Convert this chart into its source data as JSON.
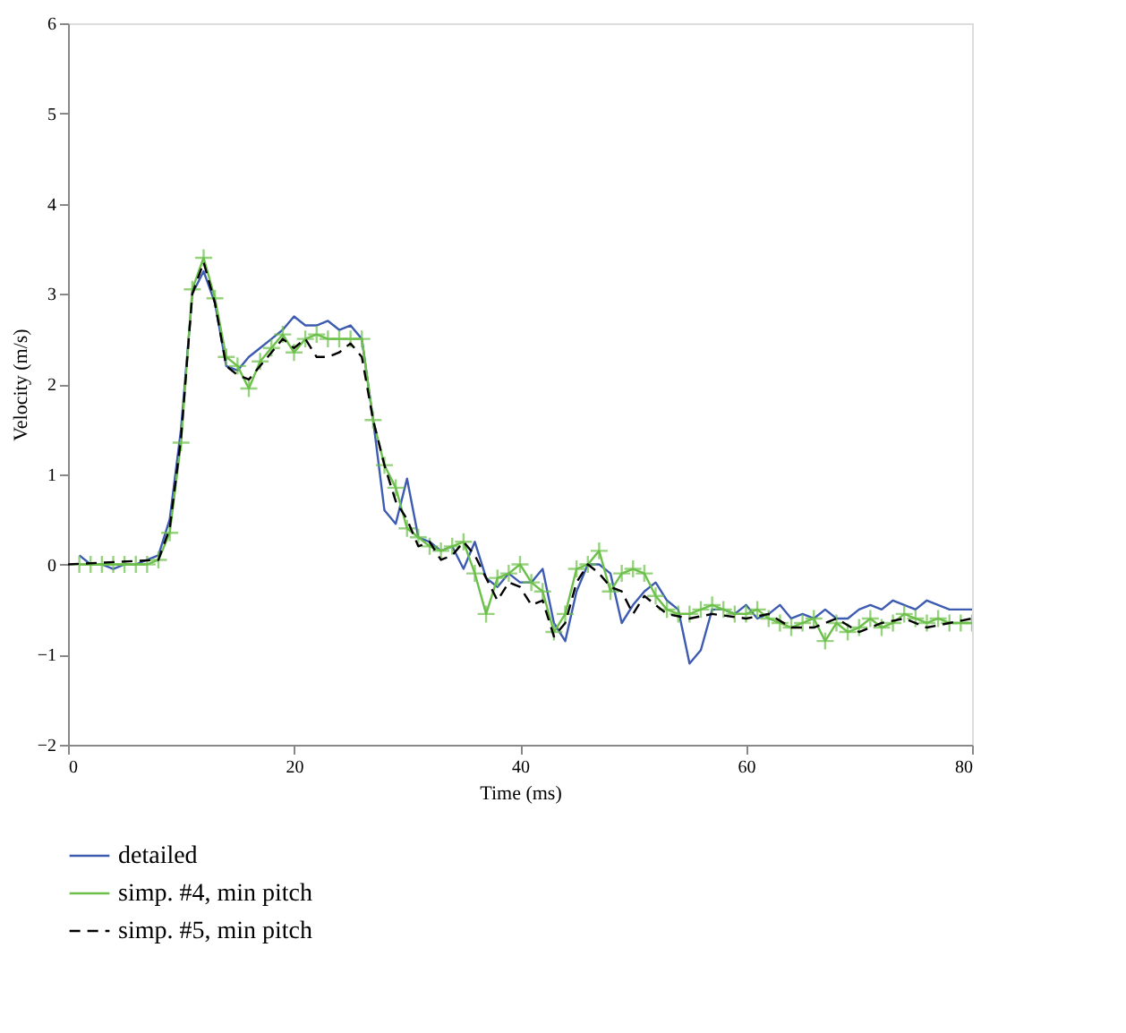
{
  "chart_data": {
    "type": "line",
    "xlabel": "Time (ms)",
    "ylabel": "Velocity (m/s)",
    "xlim": [
      0,
      80
    ],
    "ylim": [
      -2,
      6
    ],
    "xticks": [
      0,
      20,
      40,
      60,
      80
    ],
    "yticks": [
      -2,
      -1,
      0,
      1,
      2,
      3,
      4,
      5,
      6
    ],
    "grid": false,
    "legend": "bottom",
    "series": [
      {
        "name": "detailed",
        "color": "#3d5bb0",
        "line_style": "solid",
        "marker": "none",
        "x": [
          1,
          2,
          3,
          4,
          5,
          6,
          7,
          8,
          9,
          10,
          11,
          12,
          13,
          14,
          15,
          16,
          17,
          18,
          19,
          20,
          21,
          22,
          23,
          24,
          25,
          26,
          27,
          28,
          29,
          30,
          31,
          32,
          33,
          34,
          35,
          36,
          37,
          38,
          39,
          40,
          41,
          42,
          43,
          44,
          45,
          46,
          47,
          48,
          49,
          50,
          51,
          52,
          53,
          54,
          55,
          56,
          57,
          58,
          59,
          60,
          61,
          62,
          63,
          64,
          65,
          66,
          67,
          68,
          69,
          70,
          71,
          72,
          73,
          74,
          75,
          76,
          77,
          78,
          79,
          80
        ],
        "values": [
          0.1,
          0.0,
          0.0,
          -0.05,
          0.0,
          0.0,
          0.05,
          0.1,
          0.5,
          1.5,
          3.0,
          3.25,
          2.9,
          2.2,
          2.15,
          2.3,
          2.4,
          2.5,
          2.6,
          2.75,
          2.65,
          2.65,
          2.7,
          2.6,
          2.65,
          2.5,
          1.6,
          0.6,
          0.45,
          0.95,
          0.3,
          0.25,
          0.15,
          0.2,
          -0.05,
          0.25,
          -0.15,
          -0.25,
          -0.1,
          -0.2,
          -0.2,
          -0.05,
          -0.65,
          -0.85,
          -0.3,
          0.0,
          0.0,
          -0.1,
          -0.65,
          -0.45,
          -0.3,
          -0.2,
          -0.4,
          -0.5,
          -1.1,
          -0.95,
          -0.5,
          -0.5,
          -0.55,
          -0.45,
          -0.6,
          -0.55,
          -0.45,
          -0.6,
          -0.55,
          -0.6,
          -0.5,
          -0.6,
          -0.6,
          -0.5,
          -0.45,
          -0.5,
          -0.4,
          -0.45,
          -0.5,
          -0.4,
          -0.45,
          -0.5,
          -0.5,
          -0.5
        ]
      },
      {
        "name": "simp. #4, min pitch",
        "color": "#6cc04a",
        "line_style": "solid",
        "marker": "cross",
        "x": [
          1,
          2,
          3,
          4,
          5,
          6,
          7,
          8,
          9,
          10,
          11,
          12,
          13,
          14,
          15,
          16,
          17,
          18,
          19,
          20,
          21,
          22,
          23,
          24,
          25,
          26,
          27,
          28,
          29,
          30,
          31,
          32,
          33,
          34,
          35,
          36,
          37,
          38,
          39,
          40,
          41,
          42,
          43,
          44,
          45,
          46,
          47,
          48,
          49,
          50,
          51,
          52,
          53,
          54,
          55,
          56,
          57,
          58,
          59,
          60,
          61,
          62,
          63,
          64,
          65,
          66,
          67,
          68,
          69,
          70,
          71,
          72,
          73,
          74,
          75,
          76,
          77,
          78,
          79,
          80
        ],
        "values": [
          0.0,
          0.0,
          0.0,
          0.0,
          0.0,
          0.0,
          0.0,
          0.05,
          0.35,
          1.35,
          3.05,
          3.4,
          2.95,
          2.3,
          2.2,
          1.95,
          2.25,
          2.4,
          2.55,
          2.35,
          2.5,
          2.55,
          2.5,
          2.5,
          2.5,
          2.5,
          1.6,
          1.1,
          0.85,
          0.4,
          0.3,
          0.2,
          0.15,
          0.2,
          0.25,
          -0.1,
          -0.55,
          -0.15,
          -0.1,
          0.0,
          -0.2,
          -0.3,
          -0.75,
          -0.55,
          -0.05,
          0.0,
          0.15,
          -0.3,
          -0.1,
          -0.05,
          -0.1,
          -0.35,
          -0.5,
          -0.55,
          -0.55,
          -0.5,
          -0.45,
          -0.5,
          -0.55,
          -0.55,
          -0.5,
          -0.6,
          -0.65,
          -0.7,
          -0.65,
          -0.6,
          -0.85,
          -0.65,
          -0.75,
          -0.7,
          -0.6,
          -0.7,
          -0.65,
          -0.55,
          -0.6,
          -0.65,
          -0.6,
          -0.65,
          -0.65,
          -0.65
        ]
      },
      {
        "name": "simp. #5, min pitch",
        "color": "#000000",
        "line_style": "dashed",
        "marker": "none",
        "x": [
          0,
          8,
          9,
          10,
          11,
          12,
          13,
          14,
          15,
          16,
          17,
          18,
          19,
          20,
          21,
          22,
          23,
          24,
          25,
          26,
          27,
          28,
          29,
          30,
          31,
          32,
          33,
          34,
          35,
          36,
          37,
          38,
          39,
          40,
          41,
          42,
          43,
          44,
          45,
          46,
          47,
          48,
          49,
          50,
          51,
          52,
          53,
          55,
          57,
          60,
          62,
          64,
          66,
          68,
          70,
          72,
          74,
          76,
          78,
          80
        ],
        "values": [
          0.0,
          0.05,
          0.4,
          1.4,
          3.0,
          3.35,
          2.9,
          2.2,
          2.1,
          2.05,
          2.2,
          2.35,
          2.5,
          2.4,
          2.5,
          2.3,
          2.3,
          2.35,
          2.45,
          2.3,
          1.6,
          1.1,
          0.7,
          0.5,
          0.2,
          0.25,
          0.05,
          0.1,
          0.25,
          0.1,
          -0.15,
          -0.4,
          -0.2,
          -0.25,
          -0.45,
          -0.4,
          -0.8,
          -0.65,
          -0.2,
          0.0,
          -0.1,
          -0.25,
          -0.3,
          -0.55,
          -0.35,
          -0.45,
          -0.55,
          -0.6,
          -0.55,
          -0.6,
          -0.55,
          -0.7,
          -0.7,
          -0.6,
          -0.75,
          -0.65,
          -0.6,
          -0.7,
          -0.65,
          -0.6
        ]
      }
    ]
  }
}
